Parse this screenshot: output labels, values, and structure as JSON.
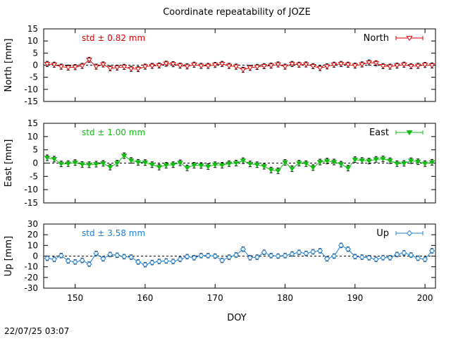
{
  "title": "Coordinate repeatability of JOZE",
  "timestamp": "22/07/25 03:07",
  "chart_data": {
    "type": "line",
    "title": "Coordinate repeatability of JOZE",
    "xlabel": "DOY",
    "xlim": [
      145.5,
      201.5
    ],
    "xticks": [
      150,
      160,
      170,
      180,
      190,
      200
    ],
    "x": [
      146,
      147,
      148,
      149,
      150,
      151,
      152,
      153,
      154,
      155,
      156,
      157,
      158,
      159,
      160,
      161,
      162,
      163,
      164,
      165,
      166,
      167,
      168,
      169,
      170,
      171,
      172,
      173,
      174,
      175,
      176,
      177,
      178,
      179,
      180,
      181,
      182,
      183,
      184,
      185,
      186,
      187,
      188,
      189,
      190,
      191,
      192,
      193,
      194,
      195,
      196,
      197,
      198,
      199,
      200,
      201
    ],
    "grid": false,
    "panels": [
      {
        "name": "North",
        "ylabel": "North [mm]",
        "ylim": [
          -15,
          15
        ],
        "yticks": [
          -15,
          -10,
          -5,
          0,
          5,
          10,
          15
        ],
        "std_label": "std ± 0.82 mm",
        "legend": "North",
        "legend_position": "top-right",
        "color": "#dd0000",
        "marker": "triangle-down-open",
        "values": [
          0.5,
          0.2,
          -0.6,
          -1.0,
          -0.8,
          -0.3,
          2.2,
          -0.6,
          0.3,
          -1.3,
          -1.0,
          -0.7,
          -1.5,
          -1.6,
          -0.6,
          -0.3,
          -0.1,
          0.6,
          0.4,
          -0.2,
          -0.5,
          0.2,
          -0.3,
          -0.3,
          0.1,
          0.5,
          -0.3,
          -0.6,
          -1.9,
          -1.1,
          -0.7,
          -0.4,
          -0.2,
          0.3,
          -0.6,
          0.5,
          0.2,
          0.3,
          -0.4,
          -1.2,
          -0.5,
          0.2,
          0.5,
          0.2,
          -0.2,
          0.3,
          1.1,
          0.8,
          -0.4,
          -0.6,
          -0.2,
          0.2,
          -0.4,
          -0.3,
          0.1,
          -0.1
        ]
      },
      {
        "name": "East",
        "ylabel": "East [mm]",
        "ylim": [
          -15,
          15
        ],
        "yticks": [
          -15,
          -10,
          -5,
          0,
          5,
          10,
          15
        ],
        "std_label": "std ± 1.00 mm",
        "legend": "East",
        "legend_position": "top-right",
        "color": "#11bb11",
        "marker": "triangle-down-filled",
        "values": [
          2.0,
          1.5,
          -0.3,
          -0.2,
          0.2,
          -0.5,
          -0.6,
          -0.4,
          -0.1,
          -1.5,
          0.0,
          2.8,
          1.0,
          0.3,
          0.2,
          -0.6,
          -1.5,
          -0.8,
          -0.6,
          0.1,
          -1.8,
          -0.8,
          -0.9,
          -1.3,
          -0.6,
          -0.8,
          -0.2,
          0.0,
          0.9,
          -0.3,
          -0.6,
          -1.2,
          -2.6,
          -2.9,
          0.3,
          -2.1,
          0.0,
          -0.2,
          -1.7,
          0.4,
          0.8,
          0.4,
          -0.4,
          -1.9,
          1.3,
          1.0,
          0.8,
          1.4,
          1.6,
          0.9,
          -0.2,
          -0.1,
          0.9,
          0.5,
          -0.2,
          0.3
        ]
      },
      {
        "name": "Up",
        "ylabel": "Up [mm]",
        "ylim": [
          -30,
          30
        ],
        "yticks": [
          -30,
          -20,
          -10,
          0,
          10,
          20,
          30
        ],
        "std_label": "std ± 3.58 mm",
        "legend": "Up",
        "legend_position": "top-right",
        "color": "#1a7fd6",
        "marker": "diamond-open",
        "values": [
          -2.0,
          -3.0,
          0.5,
          -4.5,
          -5.5,
          -4.0,
          -7.5,
          2.5,
          -2.5,
          1.5,
          0.8,
          -0.5,
          -1.0,
          -5.5,
          -8.0,
          -6.0,
          -5.0,
          -4.5,
          -5.0,
          -3.0,
          -0.5,
          -1.5,
          0.5,
          0.5,
          0.0,
          -4.0,
          -1.0,
          1.0,
          6.5,
          -1.5,
          -1.0,
          3.5,
          0.5,
          0.0,
          0.5,
          2.0,
          3.5,
          2.5,
          4.0,
          5.0,
          -2.5,
          0.0,
          10.0,
          6.5,
          -0.5,
          -1.0,
          -1.5,
          -3.0,
          -1.5,
          -1.5,
          1.5,
          3.0,
          1.0,
          -2.0,
          -3.0,
          5.0
        ]
      }
    ]
  }
}
